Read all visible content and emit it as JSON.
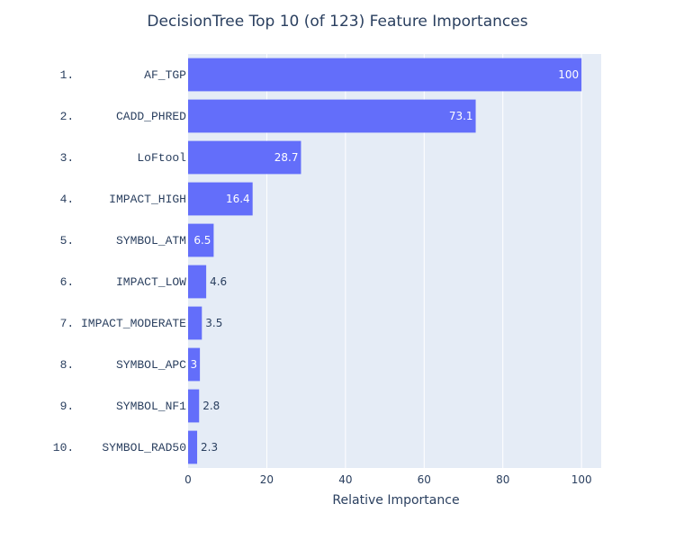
{
  "chart_data": {
    "type": "bar",
    "orientation": "horizontal",
    "title": "DecisionTree Top 10 (of 123) Feature Importances",
    "xlabel": "Relative Importance",
    "ylabel": "",
    "xlim": [
      0,
      105
    ],
    "xticks": [
      0,
      20,
      40,
      60,
      80,
      100
    ],
    "grid": true,
    "categories": [
      "1.          AF_TGP",
      "2.      CADD_PHRED",
      "3.         LoFtool",
      "4.     IMPACT_HIGH",
      "5.      SYMBOL_ATM",
      "6.      IMPACT_LOW",
      "7. IMPACT_MODERATE",
      "8.      SYMBOL_APC",
      "9.      SYMBOL_NF1",
      "10.    SYMBOL_RAD50"
    ],
    "values": [
      100,
      73.1,
      28.7,
      16.4,
      6.5,
      4.6,
      3.5,
      3,
      2.8,
      2.3
    ],
    "data_labels": [
      "100",
      "73.1",
      "28.7",
      "16.4",
      "6.5",
      "4.6",
      "3.5",
      "3",
      "2.8",
      "2.3"
    ],
    "colors": {
      "bar": "#636efa",
      "plot_bg": "#e5ecf6",
      "grid": "#ffffff",
      "text": "#2a3f5f"
    }
  }
}
